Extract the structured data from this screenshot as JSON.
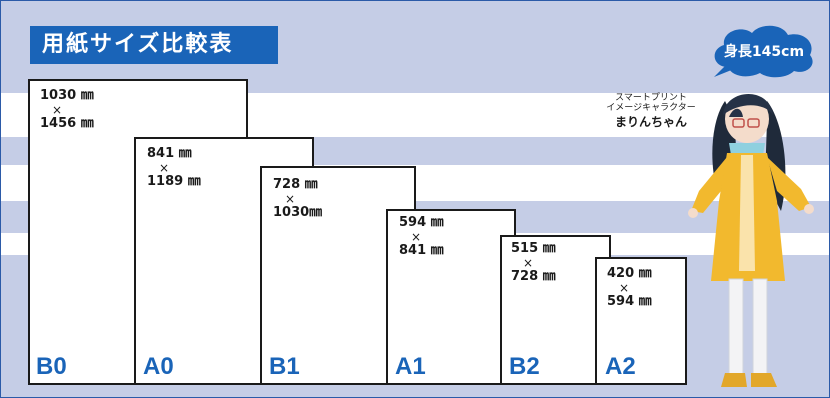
{
  "title": "用紙サイズ比較表",
  "height_badge": "身長145cm",
  "character": {
    "line1": "スマートプリント",
    "line2": "イメージキャラクター",
    "name": "まりんちゃん"
  },
  "papers": [
    {
      "label": "B0",
      "width": "1030 ㎜",
      "times": "×",
      "height": "1456 ㎜"
    },
    {
      "label": "A0",
      "width": "841 ㎜",
      "times": "×",
      "height": "1189 ㎜"
    },
    {
      "label": "B1",
      "width": "728 ㎜",
      "times": "×",
      "height": "1030㎜"
    },
    {
      "label": "A1",
      "width": "594 ㎜",
      "times": "×",
      "height": "841 ㎜"
    },
    {
      "label": "B2",
      "width": "515 ㎜",
      "times": "×",
      "height": "728 ㎜"
    },
    {
      "label": "A2",
      "width": "420 ㎜",
      "times": "×",
      "height": "594 ㎜"
    }
  ],
  "colors": {
    "accent": "#1a64b8",
    "background": "#c5cde6",
    "band": "#ffffff",
    "cloud": "#1a64b8"
  },
  "icons": {
    "cloud": "speech-cloud-icon",
    "figure": "mascot-figure-icon"
  }
}
